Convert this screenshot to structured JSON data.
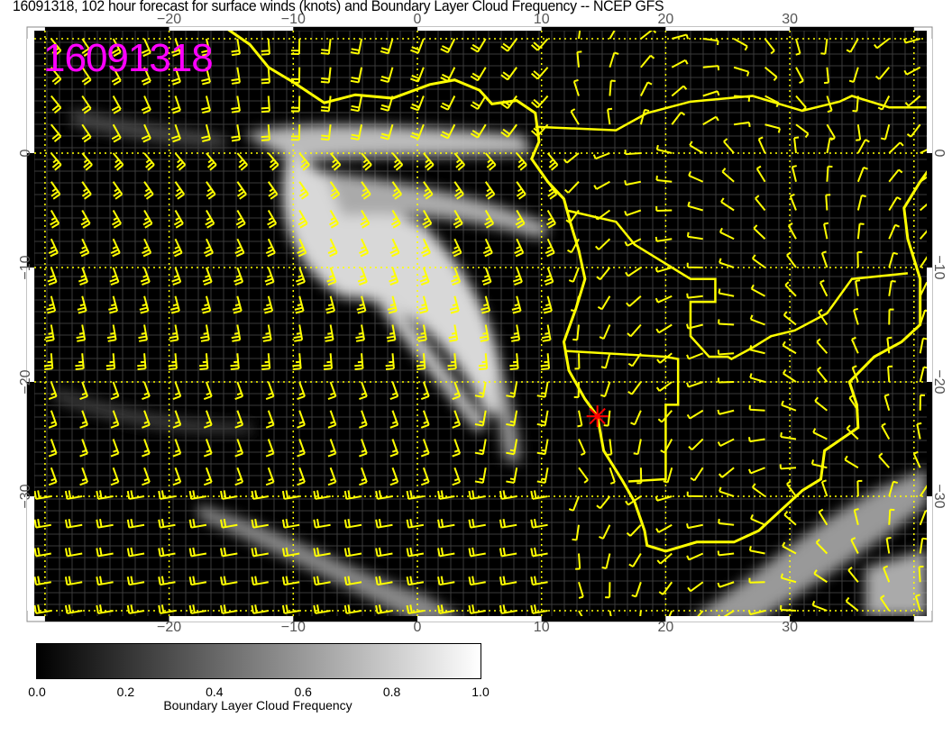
{
  "title": "16091318, 102 hour forecast for surface winds (knots) and Boundary Layer Cloud Frequency -- NCEP GFS",
  "stamp": "16091318",
  "map": {
    "lon_ticks": [
      "−20",
      "−10",
      "0",
      "10",
      "20",
      "30"
    ],
    "lon_values": [
      -20,
      -10,
      0,
      10,
      20,
      30
    ],
    "lat_ticks": [
      "0",
      "−10",
      "−20",
      "−30"
    ],
    "lat_values": [
      0,
      -10,
      -20,
      -30
    ],
    "lon_range": [
      -31,
      41
    ],
    "lat_range": [
      -40.5,
      10.8
    ],
    "marker": {
      "lon": 14.5,
      "lat": -23,
      "icon": "red-star-marker"
    },
    "colors": {
      "background": "#000000",
      "coast": "#ffff00",
      "barbs": "#ffff00",
      "grid": "#ffff00",
      "stamp": "#ff00ff",
      "marker": "#ff0000"
    }
  },
  "colorbar": {
    "ticks": [
      "0.0",
      "0.2",
      "0.4",
      "0.6",
      "0.8",
      "1.0"
    ],
    "label": "Boundary Layer Cloud Frequency",
    "range": [
      0,
      1
    ]
  }
}
